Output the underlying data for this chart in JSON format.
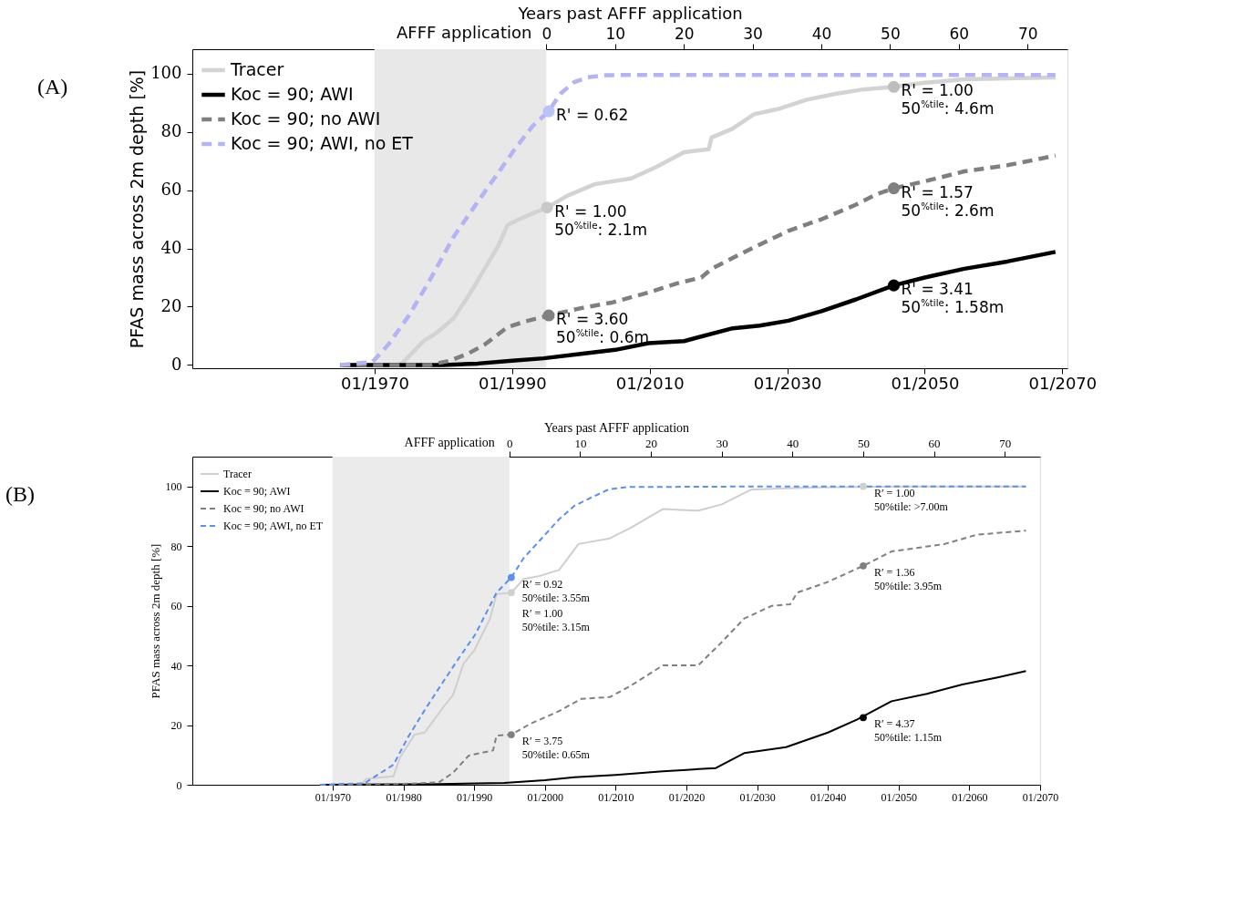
{
  "chart_data": [
    {
      "type": "line",
      "x2label": "Years past AFFF application",
      "ylabel": "PFAS mass across 2m depth [%]",
      "xlim": [
        "1943-07",
        "2070-10"
      ],
      "xticks": [
        {
          "value": "1970-01",
          "label": "01/1970"
        },
        {
          "value": "1990-01",
          "label": "01/1990"
        },
        {
          "value": "2010-01",
          "label": "01/2010"
        },
        {
          "value": "2030-01",
          "label": "01/2030"
        },
        {
          "value": "2050-01",
          "label": "01/2050"
        },
        {
          "value": "2070-01",
          "label": "01/2070"
        }
      ],
      "x2lim": [
        -51.5,
        75.8
      ],
      "x2ticks": [
        0,
        10,
        20,
        30,
        40,
        50,
        60,
        70
      ],
      "ylim": [
        -1.1,
        108.3
      ],
      "yticks": [
        0,
        20,
        40,
        60,
        80,
        100
      ],
      "bands": [
        {
          "axis": "x2",
          "from": -25,
          "to": 0,
          "label": "AFFF application",
          "color": "#e8e8e8"
        }
      ],
      "legend": "top left",
      "grid": false,
      "series": [
        {
          "name": "Tracer",
          "color": "#d3d3d3",
          "line_style": "solid",
          "x": [
            "1965",
            "1973",
            "1974",
            "1977-03",
            "1979",
            "1981-07",
            "1984",
            "1986",
            "1988",
            "1989-05",
            "1991",
            "1993",
            "1995-02",
            "1998",
            "2002",
            "2007-05",
            "2011",
            "2015",
            "2018-08",
            "2019",
            "2022",
            "2025-03",
            "2029",
            "2032-11",
            "2037",
            "2041",
            "2045-07",
            "2050",
            "2055-10",
            "2062",
            "2069"
          ],
          "values": [
            0,
            0,
            0.6,
            8.3,
            11,
            16,
            25,
            33,
            41,
            48,
            50,
            52,
            54,
            58,
            62,
            64,
            68,
            73,
            74,
            78,
            81,
            86,
            88,
            91,
            93,
            94.5,
            95.4,
            96.8,
            98,
            98.3,
            98.6
          ]
        },
        {
          "name": "Koc = 90; AWI",
          "color": "#000000",
          "line_style": "solid",
          "x": [
            "1965",
            "1980",
            "1985",
            "1990",
            "1994-08",
            "2000",
            "2005",
            "2009-11",
            "2015",
            "2022-02",
            "2026",
            "2030-03",
            "2035",
            "2040",
            "2045-07",
            "2050",
            "2055-10",
            "2062",
            "2069"
          ],
          "values": [
            0,
            0,
            0.5,
            1.5,
            2.3,
            3.8,
            5.2,
            7.5,
            8.2,
            12.6,
            13.5,
            15.2,
            18.5,
            22.5,
            27.3,
            30,
            33,
            35.5,
            38.8
          ]
        },
        {
          "name": "Koc = 90; no AWI",
          "color": "#7f7f7f",
          "line_style": "dashed",
          "x": [
            "1965",
            "1978",
            "1981",
            "1983-09",
            "1986",
            "1989-05",
            "1992",
            "1995-05",
            "2000",
            "2004-09",
            "2010",
            "2014",
            "2017-07",
            "2019",
            "2024",
            "2030-03",
            "2035",
            "2040",
            "2043",
            "2045-07",
            "2050",
            "2055-10",
            "2062",
            "2069"
          ],
          "values": [
            0,
            0,
            1.5,
            4,
            7,
            13,
            15,
            17,
            19.5,
            21.5,
            25,
            28,
            30,
            33,
            39,
            46,
            50,
            55,
            58.6,
            60.6,
            63,
            66.4,
            68.5,
            71.8
          ]
        },
        {
          "name": "Koc = 90; AWI, no ET",
          "color": "#b3b3f5",
          "line_style": "dashed",
          "x": [
            "1965",
            "1969-09",
            "1972",
            "1975",
            "1978",
            "1981-07",
            "1985",
            "1988",
            "1990-04",
            "1993",
            "1995-05",
            "1997",
            "1999",
            "2001",
            "2003-09",
            "2010",
            "2030",
            "2050",
            "2069"
          ],
          "values": [
            0,
            1,
            7,
            17,
            29,
            44,
            56,
            66,
            73.6,
            82,
            87,
            93,
            97,
            98.7,
            99.4,
            99.5,
            99.5,
            99.5,
            99.5
          ]
        },
        {
          "type": "scatter",
          "marker": "circle",
          "x": [
            "1995-05",
            "1995-02",
            "1995-05",
            "2045-07",
            "2045-07",
            "2045-07"
          ],
          "values": [
            87,
            54,
            17,
            95.4,
            60.6,
            27.3
          ],
          "colors": [
            "#b9c3f4",
            "#c8c8c8",
            "#808080",
            "#bdbdbd",
            "#808080",
            "#000000"
          ]
        }
      ],
      "annotations": [
        "(A)",
        {
          "text": "R' = 0.62",
          "x": "1995-05",
          "y": 87
        },
        {
          "text": "R' = 1.00\n50$^{%tile}$: 2.1m",
          "x": "1995-02",
          "y": 54
        },
        {
          "text": "R' = 3.60\n50$^{%tile}$: 0.6m",
          "x": "1995-05",
          "y": 17
        },
        {
          "text": "R' = 1.00\n50$^{%tile}$: 4.6m",
          "x": "2045-07",
          "y": 95.4
        },
        {
          "text": "R' = 1.57\n50$^{%tile}$: 2.6m",
          "x": "2045-07",
          "y": 60.6
        },
        {
          "text": "R' = 3.41\n50$^{%tile}$: 1.58m",
          "x": "2045-07",
          "y": 27.3
        }
      ]
    },
    {
      "type": "line",
      "x2label": "Years past AFFF application",
      "ylabel": "PFAS mass across 2m depth [%]",
      "xlim": [
        "1950-03",
        "2070-01"
      ],
      "xticks": [
        {
          "value": "1970-01",
          "label": "01/1970"
        },
        {
          "value": "1980-01",
          "label": "01/1980"
        },
        {
          "value": "1990-01",
          "label": "01/1990"
        },
        {
          "value": "2000-01",
          "label": "01/2000"
        },
        {
          "value": "2010-01",
          "label": "01/2010"
        },
        {
          "value": "2020-01",
          "label": "01/2020"
        },
        {
          "value": "2030-01",
          "label": "01/2030"
        },
        {
          "value": "2040-01",
          "label": "01/2040"
        },
        {
          "value": "2050-01",
          "label": "01/2050"
        },
        {
          "value": "2060-01",
          "label": "01/2060"
        },
        {
          "value": "2070-01",
          "label": "01/2070"
        }
      ],
      "x2lim": [
        -44.8,
        75
      ],
      "x2ticks": [
        0,
        10,
        20,
        30,
        40,
        50,
        60,
        70
      ],
      "ylim": [
        0,
        110
      ],
      "yticks": [
        0,
        20,
        40,
        60,
        80,
        100
      ],
      "bands": [
        {
          "axis": "x2",
          "from": -25,
          "to": 0,
          "label": "AFFF application",
          "color": "#ebebeb"
        }
      ],
      "legend": "top left",
      "grid": false,
      "series": [
        {
          "name": "Tracer",
          "color": "#cfcfcf",
          "line_style": "solid",
          "x": [
            "1968-04",
            "1974",
            "1974-10",
            "1978-08",
            "1979-07",
            "1981-08",
            "1983",
            "1985-11",
            "1987",
            "1988-07",
            "1990",
            "1992-04",
            "1993-03",
            "1995-04",
            "1997",
            "1999-04",
            "2002",
            "2004-10",
            "2009-03",
            "2012",
            "2016-09",
            "2021-09",
            "2025",
            "2029-02",
            "2033",
            "2039-02",
            "2050",
            "2068"
          ],
          "values": [
            0,
            0,
            2,
            2.8,
            9,
            16.8,
            17.5,
            26.6,
            30,
            40.6,
            45,
            55.7,
            63.9,
            64.4,
            69,
            70,
            72,
            80.7,
            82.6,
            86,
            92.4,
            91.9,
            94,
            98.9,
            99.3,
            99.7,
            100,
            100
          ]
        },
        {
          "name": "Koc = 90; AWI",
          "color": "#000000",
          "line_style": "solid",
          "x": [
            "1968-04",
            "1985",
            "1994-04",
            "2000",
            "2004-03",
            "2010",
            "2016-09",
            "2020",
            "2024-03",
            "2028-03",
            "2034-02",
            "2040",
            "2044-02",
            "2049",
            "2054",
            "2059",
            "2064",
            "2068"
          ],
          "values": [
            0,
            0.2,
            0.6,
            1.5,
            2.5,
            3.3,
            4.5,
            5,
            5.6,
            10.6,
            12.6,
            17.5,
            21.8,
            28,
            30.5,
            33.6,
            36,
            38.1
          ]
        },
        {
          "name": "Koc = 90; no AWI",
          "color": "#808080",
          "line_style": "dashed",
          "x": [
            "1968-04",
            "1980",
            "1985",
            "1987",
            "1989-04",
            "1992-09",
            "1993-03",
            "1995-04",
            "1998",
            "2001-10",
            "2005-03",
            "2009-03",
            "2012",
            "2016-09",
            "2021-09",
            "2024-08",
            "2028-03",
            "2032-02",
            "2034-09",
            "2035-09",
            "2040",
            "2045",
            "2049",
            "2056-07",
            "2061",
            "2068"
          ],
          "values": [
            0,
            0.3,
            0.8,
            4,
            9.8,
            11.5,
            16.5,
            16.8,
            20.5,
            24.4,
            28.8,
            29.4,
            33,
            40,
            40,
            46.8,
            55.7,
            60,
            60.5,
            64.4,
            68,
            73.4,
            78.2,
            80.7,
            83.8,
            85.2
          ]
        },
        {
          "name": "Koc = 90; AWI, no ET",
          "color": "#5b8ff0",
          "line_style": "dashed",
          "x": [
            "1968-04",
            "1974-07",
            "1978-08",
            "1980-09",
            "1983",
            "1985-11",
            "1988",
            "1990-03",
            "1993-03",
            "1995-04",
            "1997",
            "1999-04",
            "2002",
            "2004-03",
            "2006-10",
            "2009",
            "2011-09",
            "2030",
            "2050",
            "2068"
          ],
          "values": [
            0,
            0.5,
            6.7,
            16,
            25,
            35.3,
            43,
            50.4,
            64.4,
            69.5,
            76,
            81.8,
            89,
            93.5,
            96.5,
            99,
            99.8,
            100,
            100,
            100
          ]
        },
        {
          "type": "scatter",
          "marker": "circle",
          "x": [
            "1995-04",
            "1995-04",
            "1995-04",
            "2045",
            "2045",
            "2045"
          ],
          "values": [
            69.5,
            64.4,
            16.8,
            100,
            73.4,
            22.5
          ],
          "colors": [
            "#5b8ff0",
            "#d0d0d0",
            "#808080",
            "#d0d0d0",
            "#808080",
            "#000000"
          ]
        }
      ],
      "annotations": [
        "(B)",
        {
          "text": "R′ = 0.92\n50%tile: 3.55m",
          "x": "1995-04",
          "y": 69.5
        },
        {
          "text": "R′ = 1.00\n50%tile: 3.15m",
          "x": "1995-04",
          "y": 64.4
        },
        {
          "text": "R′ = 3.75\n50%tile: 0.65m",
          "x": "1995-04",
          "y": 16.8
        },
        {
          "text": "R′ = 1.00\n50%tile: >7.00m",
          "x": "2045",
          "y": 100
        },
        {
          "text": "R′ = 1.36\n50%tile: 3.95m",
          "x": "2045",
          "y": 73.4
        },
        {
          "text": "R′ = 4.37\n50%tile: 1.15m",
          "x": "2045",
          "y": 22.5
        }
      ]
    }
  ]
}
